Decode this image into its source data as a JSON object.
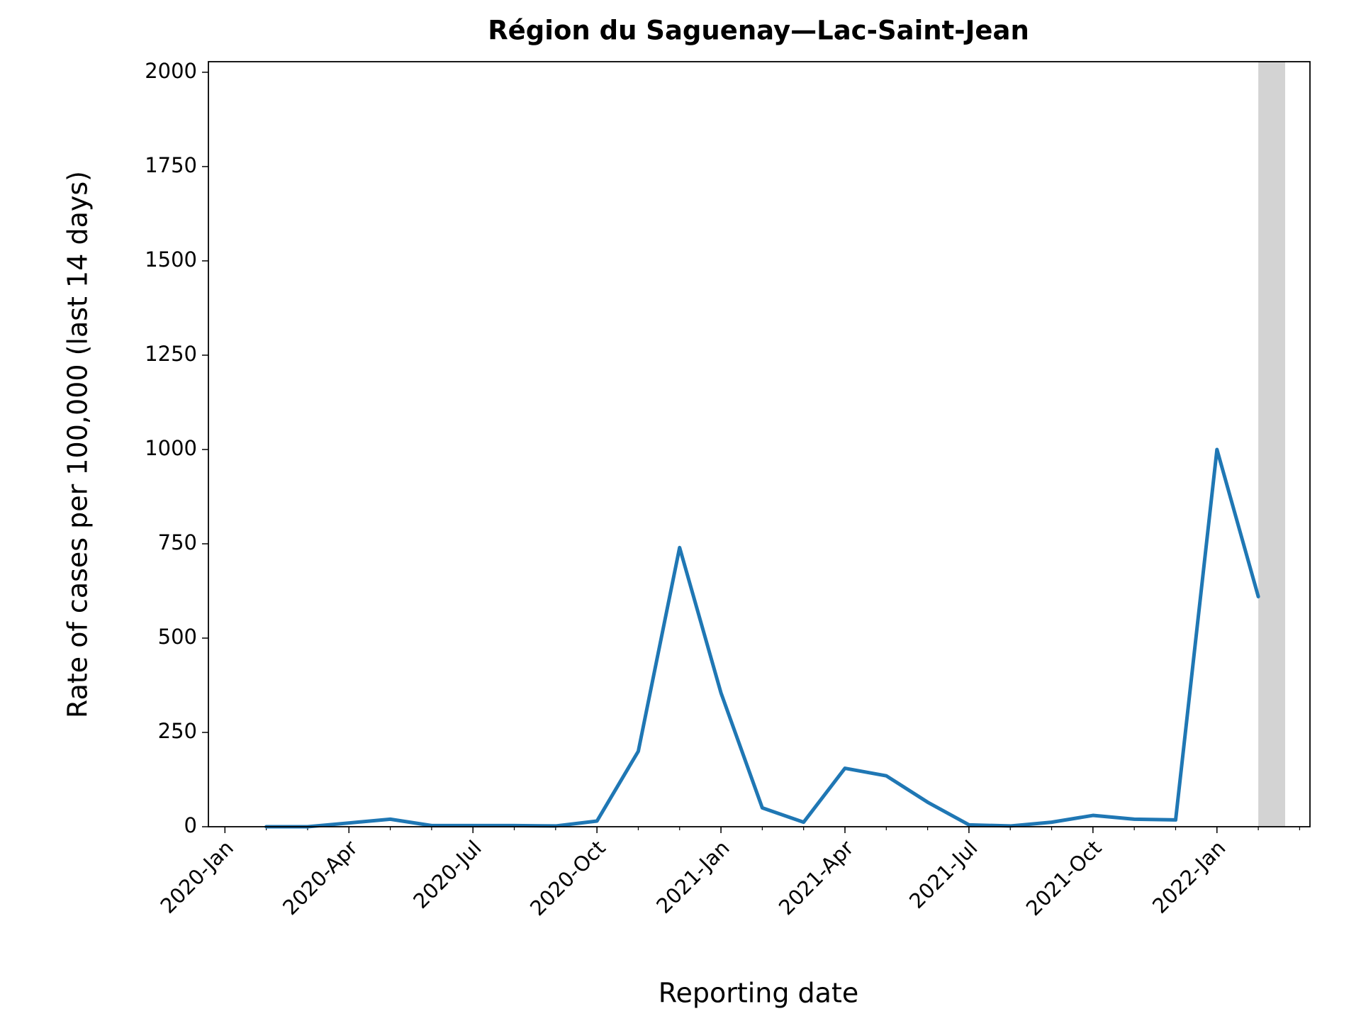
{
  "chart_data": {
    "type": "line",
    "title": "Région du Saguenay—Lac-Saint-Jean",
    "xlabel": "Reporting date",
    "ylabel": "Rate of cases per 100,000 (last 14 days)",
    "x": [
      "2020-Feb",
      "2020-Mar",
      "2020-Apr",
      "2020-May",
      "2020-Jun",
      "2020-Jul",
      "2020-Aug",
      "2020-Sep",
      "2020-Oct",
      "2020-Nov",
      "2020-Dec",
      "2021-Jan",
      "2021-Feb",
      "2021-Mar",
      "2021-Apr",
      "2021-May",
      "2021-Jun",
      "2021-Jul",
      "2021-Aug",
      "2021-Sep",
      "2021-Oct",
      "2021-Nov",
      "2021-Dec",
      "2022-Jan",
      "2022-Feb"
    ],
    "series": [
      {
        "name": "Rate",
        "color": "#1f77b4",
        "values": [
          0,
          0,
          10,
          20,
          3,
          3,
          3,
          2,
          15,
          200,
          740,
          355,
          50,
          12,
          155,
          135,
          65,
          5,
          2,
          12,
          30,
          20,
          18,
          1000,
          610
        ]
      }
    ],
    "xlim": [
      "2019-Dec",
      "2022-Mar"
    ],
    "xticks": [
      "2020-Jan",
      "2020-Apr",
      "2020-Jul",
      "2020-Oct",
      "2021-Jan",
      "2021-Apr",
      "2021-Jul",
      "2021-Oct",
      "2022-Jan"
    ],
    "ylim": [
      0,
      2028
    ],
    "yticks": [
      0,
      250,
      500,
      750,
      1000,
      1250,
      1500,
      1750,
      2000
    ],
    "shaded_period": "2022-Feb",
    "shade_color": "#d3d3d3",
    "grid": false
  }
}
